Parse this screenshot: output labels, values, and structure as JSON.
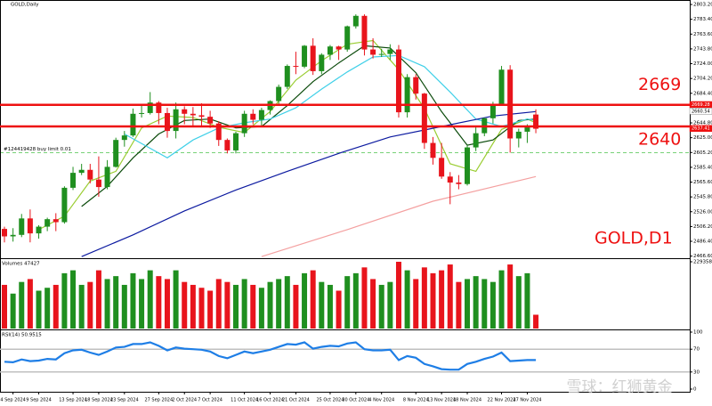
{
  "chart_data": [
    {
      "type": "candlestick",
      "title": "GOLD,Daily",
      "symbol": "GOLD,D1",
      "categories": [
        null,
        "4 Sep 2024",
        null,
        null,
        "9 Sep 2024",
        null,
        null,
        null,
        "13 Sep 2024",
        null,
        null,
        "18 Sep 2024",
        null,
        null,
        "23 Sep 2024",
        null,
        null,
        null,
        "27 Sep 2024",
        null,
        null,
        "2 Oct 2024",
        null,
        null,
        "7 Oct 2024",
        null,
        null,
        null,
        "11 Oct 2024",
        null,
        null,
        "16 Oct 2024",
        null,
        null,
        "21 Oct 2024",
        null,
        null,
        null,
        "25 Oct 2024",
        null,
        null,
        "30 Oct 2024",
        null,
        null,
        "4 Nov 2024",
        null,
        null,
        null,
        "8 Nov 2024",
        null,
        null,
        "13 Nov 2024",
        null,
        null,
        "18 Nov 2024",
        null,
        null,
        null,
        "22 Nov 2024",
        null,
        null,
        "27 Nov 2024",
        null
      ],
      "open": [
        2503,
        2493,
        2495,
        2517,
        2497,
        2506,
        2516,
        2512,
        2558,
        2578,
        2582,
        2569,
        2559,
        2586,
        2622,
        2628,
        2657,
        2658,
        2672,
        2658,
        2634,
        2663,
        2657,
        2655,
        2653,
        2644,
        2622,
        2608,
        2631,
        2657,
        2649,
        2662,
        2674,
        2693,
        2721,
        2720,
        2748,
        2714,
        2736,
        2747,
        2743,
        2774,
        2788,
        2743,
        2736,
        2737,
        2743,
        2659,
        2706,
        2684,
        2618,
        2598,
        2573,
        2565,
        2563,
        2612,
        2631,
        2651,
        2670,
        2716,
        2624,
        2633,
        2656
      ],
      "high": [
        2506,
        2504,
        2523,
        2529,
        2508,
        2518,
        2524,
        2560,
        2586,
        2590,
        2590,
        2600,
        2595,
        2625,
        2634,
        2664,
        2670,
        2686,
        2674,
        2665,
        2672,
        2667,
        2666,
        2671,
        2661,
        2647,
        2624,
        2633,
        2661,
        2663,
        2665,
        2675,
        2696,
        2723,
        2740,
        2749,
        2758,
        2738,
        2749,
        2748,
        2775,
        2790,
        2790,
        2758,
        2744,
        2750,
        2749,
        2710,
        2710,
        2685,
        2626,
        2618,
        2579,
        2575,
        2615,
        2639,
        2652,
        2673,
        2721,
        2722,
        2637,
        2643,
        2663
      ],
      "low": [
        2485,
        2486,
        2492,
        2485,
        2490,
        2500,
        2500,
        2510,
        2555,
        2575,
        2564,
        2546,
        2556,
        2585,
        2613,
        2626,
        2652,
        2656,
        2643,
        2625,
        2624,
        2643,
        2640,
        2641,
        2638,
        2614,
        2604,
        2604,
        2626,
        2643,
        2641,
        2656,
        2670,
        2690,
        2710,
        2718,
        2709,
        2710,
        2729,
        2729,
        2740,
        2771,
        2735,
        2731,
        2733,
        2729,
        2652,
        2652,
        2676,
        2610,
        2589,
        2570,
        2536,
        2556,
        2561,
        2607,
        2627,
        2644,
        2668,
        2605,
        2612,
        2618,
        2631
      ],
      "close": [
        2493,
        2495,
        2517,
        2497,
        2506,
        2516,
        2512,
        2558,
        2578,
        2582,
        2569,
        2559,
        2586,
        2622,
        2628,
        2657,
        2658,
        2672,
        2658,
        2634,
        2663,
        2657,
        2655,
        2653,
        2644,
        2622,
        2608,
        2631,
        2657,
        2649,
        2662,
        2674,
        2693,
        2721,
        2720,
        2748,
        2714,
        2736,
        2747,
        2743,
        2774,
        2788,
        2743,
        2736,
        2737,
        2743,
        2659,
        2706,
        2684,
        2618,
        2598,
        2573,
        2565,
        2563,
        2612,
        2631,
        2651,
        2670,
        2716,
        2624,
        2633,
        2639,
        2637
      ],
      "up_color": "#1f8f1f",
      "down_color": "#e8141c",
      "ylim": [
        2463.8,
        2809.2
      ],
      "yticks": [
        {
          "value": 2803.2,
          "label": "2803.20"
        },
        {
          "value": 2783.4,
          "label": "2783.40"
        },
        {
          "value": 2763.6,
          "label": "2763.60"
        },
        {
          "value": 2743.8,
          "label": "2743.80"
        },
        {
          "value": 2724,
          "label": "2724.00"
        },
        {
          "value": 2704.2,
          "label": "2704.20"
        },
        {
          "value": 2684.4,
          "label": "2684.40"
        },
        {
          "value": 2664.6,
          "label": "2664.60"
        },
        {
          "value": 2644.8,
          "label": "2644.80"
        },
        {
          "value": 2625,
          "label": "2625.00"
        },
        {
          "value": 2605.2,
          "label": "2605.20"
        },
        {
          "value": 2585.4,
          "label": "2585.40"
        },
        {
          "value": 2565.6,
          "label": "2565.60"
        },
        {
          "value": 2545.8,
          "label": "2545.80"
        },
        {
          "value": 2526,
          "label": "2526.00"
        },
        {
          "value": 2506.2,
          "label": "2506.20"
        },
        {
          "value": 2486.4,
          "label": "2486.40"
        },
        {
          "value": 2466.6,
          "label": "2466.60"
        }
      ],
      "grid": false,
      "moving_averages": [
        {
          "color": "#9acd32",
          "x": [
            4,
            7,
            10,
            13,
            16,
            19,
            22,
            25,
            28,
            31,
            34,
            37,
            40,
            43,
            46,
            49,
            52,
            55,
            58,
            61,
            62
          ],
          "values": [
            2502,
            2520,
            2567,
            2580,
            2638,
            2654,
            2652,
            2639,
            2632,
            2660,
            2702,
            2728,
            2750,
            2755,
            2716,
            2664,
            2590,
            2580,
            2636,
            2650,
            2645
          ]
        },
        {
          "color": "#0a4a0a",
          "x": [
            9,
            12,
            15,
            18,
            21,
            24,
            27,
            30,
            33,
            36,
            39,
            42,
            45,
            48,
            51,
            54,
            57,
            60,
            62
          ],
          "values": [
            2533,
            2560,
            2598,
            2630,
            2648,
            2650,
            2638,
            2640,
            2668,
            2700,
            2725,
            2748,
            2745,
            2712,
            2660,
            2615,
            2622,
            2648,
            2650
          ]
        },
        {
          "color": "#40d0e8",
          "x": [
            14,
            19,
            22,
            25,
            28,
            31,
            34,
            37,
            40,
            43,
            46,
            49,
            52,
            55,
            58,
            61,
            62
          ],
          "values": [
            2630,
            2598,
            2622,
            2638,
            2645,
            2650,
            2665,
            2690,
            2713,
            2733,
            2735,
            2720,
            2686,
            2650,
            2640,
            2650,
            2648
          ]
        },
        {
          "color": "#0c1aa0",
          "x": [
            9,
            15,
            21,
            27,
            33,
            39,
            45,
            51,
            57,
            62
          ],
          "values": [
            2466,
            2495,
            2527,
            2555,
            2580,
            2604,
            2626,
            2640,
            2654,
            2660
          ]
        },
        {
          "color": "#f4a0a0",
          "x": [
            30,
            40,
            50,
            62
          ],
          "values": [
            2466,
            2502,
            2540,
            2573
          ]
        }
      ],
      "levels": [
        2669,
        2640
      ],
      "level_color": "#ee1111",
      "price_tags": [
        {
          "value": 2669.28,
          "label": "2669.28",
          "color": "#ee1111"
        },
        {
          "value": 2660.54,
          "label": "2660.54",
          "color": "#ffffff"
        },
        {
          "value": 2637.41,
          "label": "2637.41",
          "color": "#ee1111"
        }
      ],
      "order": {
        "label": "#124419428 buy limit 0.01",
        "value": 2605,
        "color": "#66cc66"
      }
    },
    {
      "type": "bar",
      "title": "Volumes 47427",
      "values": [
        150000,
        120000,
        160000,
        170000,
        130000,
        140000,
        150000,
        190000,
        200000,
        150000,
        160000,
        200000,
        170000,
        180000,
        150000,
        190000,
        170000,
        200000,
        180000,
        170000,
        200000,
        160000,
        150000,
        140000,
        130000,
        170000,
        160000,
        150000,
        170000,
        150000,
        140000,
        160000,
        170000,
        180000,
        150000,
        190000,
        200000,
        160000,
        150000,
        130000,
        180000,
        190000,
        210000,
        170000,
        150000,
        160000,
        229358,
        200000,
        170000,
        210000,
        190000,
        200000,
        220000,
        160000,
        170000,
        180000,
        170000,
        160000,
        200000,
        220000,
        180000,
        190000,
        47427
      ],
      "ylim": [
        0,
        229358
      ],
      "yticks": [
        229358
      ]
    },
    {
      "type": "line",
      "title": "RSI(14) 50.9515",
      "color": "#1e7ee6",
      "values": [
        48,
        47,
        52,
        49,
        50,
        53,
        52,
        63,
        68,
        69,
        64,
        60,
        66,
        73,
        74,
        79,
        79,
        82,
        76,
        68,
        73,
        71,
        70,
        69,
        66,
        58,
        54,
        60,
        66,
        63,
        66,
        69,
        74,
        79,
        78,
        82,
        71,
        74,
        76,
        75,
        80,
        82,
        70,
        68,
        68,
        69,
        51,
        58,
        55,
        44,
        40,
        35,
        34,
        34,
        44,
        48,
        53,
        57,
        64,
        49,
        50,
        51,
        50.9515
      ],
      "ylim": [
        0,
        100
      ],
      "yticks": [
        100,
        70,
        30,
        0
      ]
    }
  ],
  "watermark": "雪球：红狮黄金"
}
